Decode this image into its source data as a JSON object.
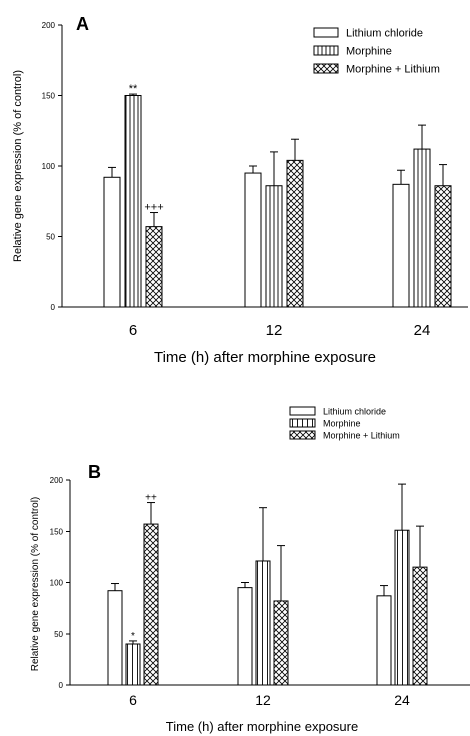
{
  "chart_data": [
    {
      "type": "bar",
      "panel_label": "A",
      "categories": [
        "6",
        "12",
        "24"
      ],
      "xlabel": "Time (h) after morphine exposure",
      "ylabel": "Relative gene expression (% of control)",
      "ylim": [
        0,
        200
      ],
      "yticks": [
        0,
        50,
        100,
        150,
        200
      ],
      "legend_position": "top-right",
      "series": [
        {
          "name": "Lithium chloride",
          "pattern": "open",
          "values": [
            92,
            95,
            87
          ],
          "errors": [
            7,
            5,
            10
          ]
        },
        {
          "name": "Morphine",
          "pattern": "vertical-lines",
          "values": [
            150,
            86,
            112
          ],
          "errors": [
            1,
            24,
            17
          ]
        },
        {
          "name": "Morphine + Lithium",
          "pattern": "crosshatch",
          "values": [
            57,
            104,
            86
          ],
          "errors": [
            10,
            15,
            15
          ]
        }
      ],
      "annotations": [
        {
          "text": "**",
          "category": "6",
          "series": 1
        },
        {
          "text": "+++",
          "category": "6",
          "series": 2
        }
      ]
    },
    {
      "type": "bar",
      "panel_label": "B",
      "categories": [
        "6",
        "12",
        "24"
      ],
      "xlabel": "Time (h) after morphine exposure",
      "ylabel": "Relative gene expression (% of control)",
      "ylim": [
        0,
        200
      ],
      "yticks": [
        0,
        50,
        100,
        150,
        200
      ],
      "legend_position": "top-right",
      "series": [
        {
          "name": "Lithium chloride",
          "pattern": "open",
          "values": [
            92,
            95,
            87
          ],
          "errors": [
            7,
            5,
            10
          ]
        },
        {
          "name": "Morphine",
          "pattern": "vertical-lines",
          "values": [
            40,
            121,
            151
          ],
          "errors": [
            3,
            52,
            45
          ]
        },
        {
          "name": "Morphine + Lithium",
          "pattern": "crosshatch",
          "values": [
            157,
            82,
            115
          ],
          "errors": [
            21,
            54,
            40
          ]
        }
      ],
      "annotations": [
        {
          "text": "*",
          "category": "6",
          "series": 1
        },
        {
          "text": "++",
          "category": "6",
          "series": 2
        }
      ]
    }
  ]
}
